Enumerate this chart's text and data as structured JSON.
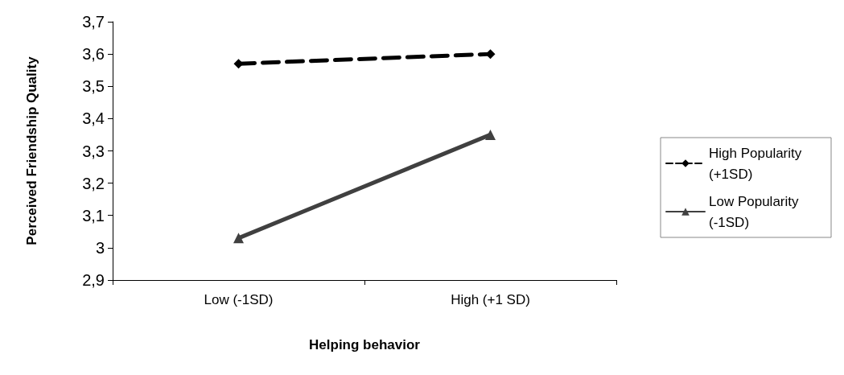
{
  "chart_data": {
    "type": "line",
    "xlabel": "Helping behavior",
    "ylabel": "Perceived Friendship Quality",
    "categories": [
      "Low (-1SD)",
      "High (+1 SD)"
    ],
    "series": [
      {
        "name": "High Popularity (+1SD)",
        "color": "#000000",
        "values": [
          3.57,
          3.6
        ],
        "marker": "diamond",
        "line_style": "dashed"
      },
      {
        "name": "Low Popularity (-1SD)",
        "color": "#404040",
        "values": [
          3.03,
          3.35
        ],
        "marker": "triangle",
        "line_style": "solid"
      }
    ],
    "ylim": [
      2.9,
      3.7
    ],
    "yticks": [
      {
        "value": 2.9,
        "label": "2,9"
      },
      {
        "value": 3,
        "label": "3"
      },
      {
        "value": 3.1,
        "label": "3,1"
      },
      {
        "value": 3.2,
        "label": "3,2"
      },
      {
        "value": 3.3,
        "label": "3,3"
      },
      {
        "value": 3.4,
        "label": "3,4"
      },
      {
        "value": 3.5,
        "label": "3,5"
      },
      {
        "value": 3.6,
        "label": "3,6"
      },
      {
        "value": 3.7,
        "label": "3,7"
      }
    ],
    "grid": false,
    "legend": "right"
  }
}
